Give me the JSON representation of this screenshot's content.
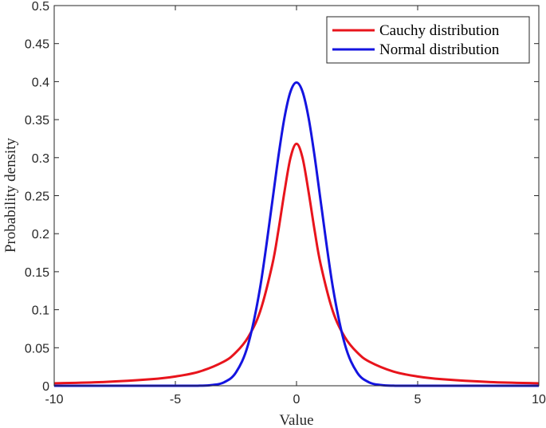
{
  "chart_data": {
    "type": "line",
    "title": "",
    "xlabel": "Value",
    "ylabel": "Probability density",
    "xlim": [
      -10,
      10
    ],
    "ylim": [
      0,
      0.5
    ],
    "xticks": [
      -10,
      -5,
      0,
      5,
      10
    ],
    "xtick_labels": [
      "-10",
      "-5",
      "0",
      "5",
      "10"
    ],
    "yticks": [
      0,
      0.05,
      0.1,
      0.15,
      0.2,
      0.25,
      0.3,
      0.35,
      0.4,
      0.45,
      0.5
    ],
    "ytick_labels": [
      "0",
      "0.05",
      "0.1",
      "0.15",
      "0.2",
      "0.25",
      "0.3",
      "0.35",
      "0.4",
      "0.45",
      "0.5"
    ],
    "grid": false,
    "legend_position": "top-right",
    "series": [
      {
        "name": "Cauchy distribution",
        "color": "#e8141c",
        "x": [
          -10,
          -8,
          -6,
          -5,
          -4,
          -3,
          -2.5,
          -2,
          -1.5,
          -1,
          -0.75,
          -0.5,
          -0.25,
          0,
          0.25,
          0.5,
          0.75,
          1,
          1.5,
          2,
          2.5,
          3,
          4,
          5,
          6,
          8,
          10
        ],
        "values": [
          0.0032,
          0.0049,
          0.0086,
          0.0122,
          0.0187,
          0.0318,
          0.0439,
          0.0637,
          0.0979,
          0.1592,
          0.2037,
          0.2546,
          0.2996,
          0.3183,
          0.2996,
          0.2546,
          0.2037,
          0.1592,
          0.0979,
          0.0637,
          0.0439,
          0.0318,
          0.0187,
          0.0122,
          0.0086,
          0.0049,
          0.0032
        ]
      },
      {
        "name": "Normal distribution",
        "color": "#1414e0",
        "x": [
          -10,
          -5,
          -4,
          -3.5,
          -3,
          -2.5,
          -2,
          -1.5,
          -1,
          -0.75,
          -0.5,
          -0.25,
          0,
          0.25,
          0.5,
          0.75,
          1,
          1.5,
          2,
          2.5,
          3,
          3.5,
          4,
          5,
          10
        ],
        "values": [
          0.0,
          0.0,
          0.0001,
          0.0009,
          0.0044,
          0.0175,
          0.054,
          0.1295,
          0.242,
          0.3011,
          0.3521,
          0.3867,
          0.3989,
          0.3867,
          0.3521,
          0.3011,
          0.242,
          0.1295,
          0.054,
          0.0175,
          0.0044,
          0.0009,
          0.0001,
          0.0,
          0.0
        ]
      }
    ]
  }
}
